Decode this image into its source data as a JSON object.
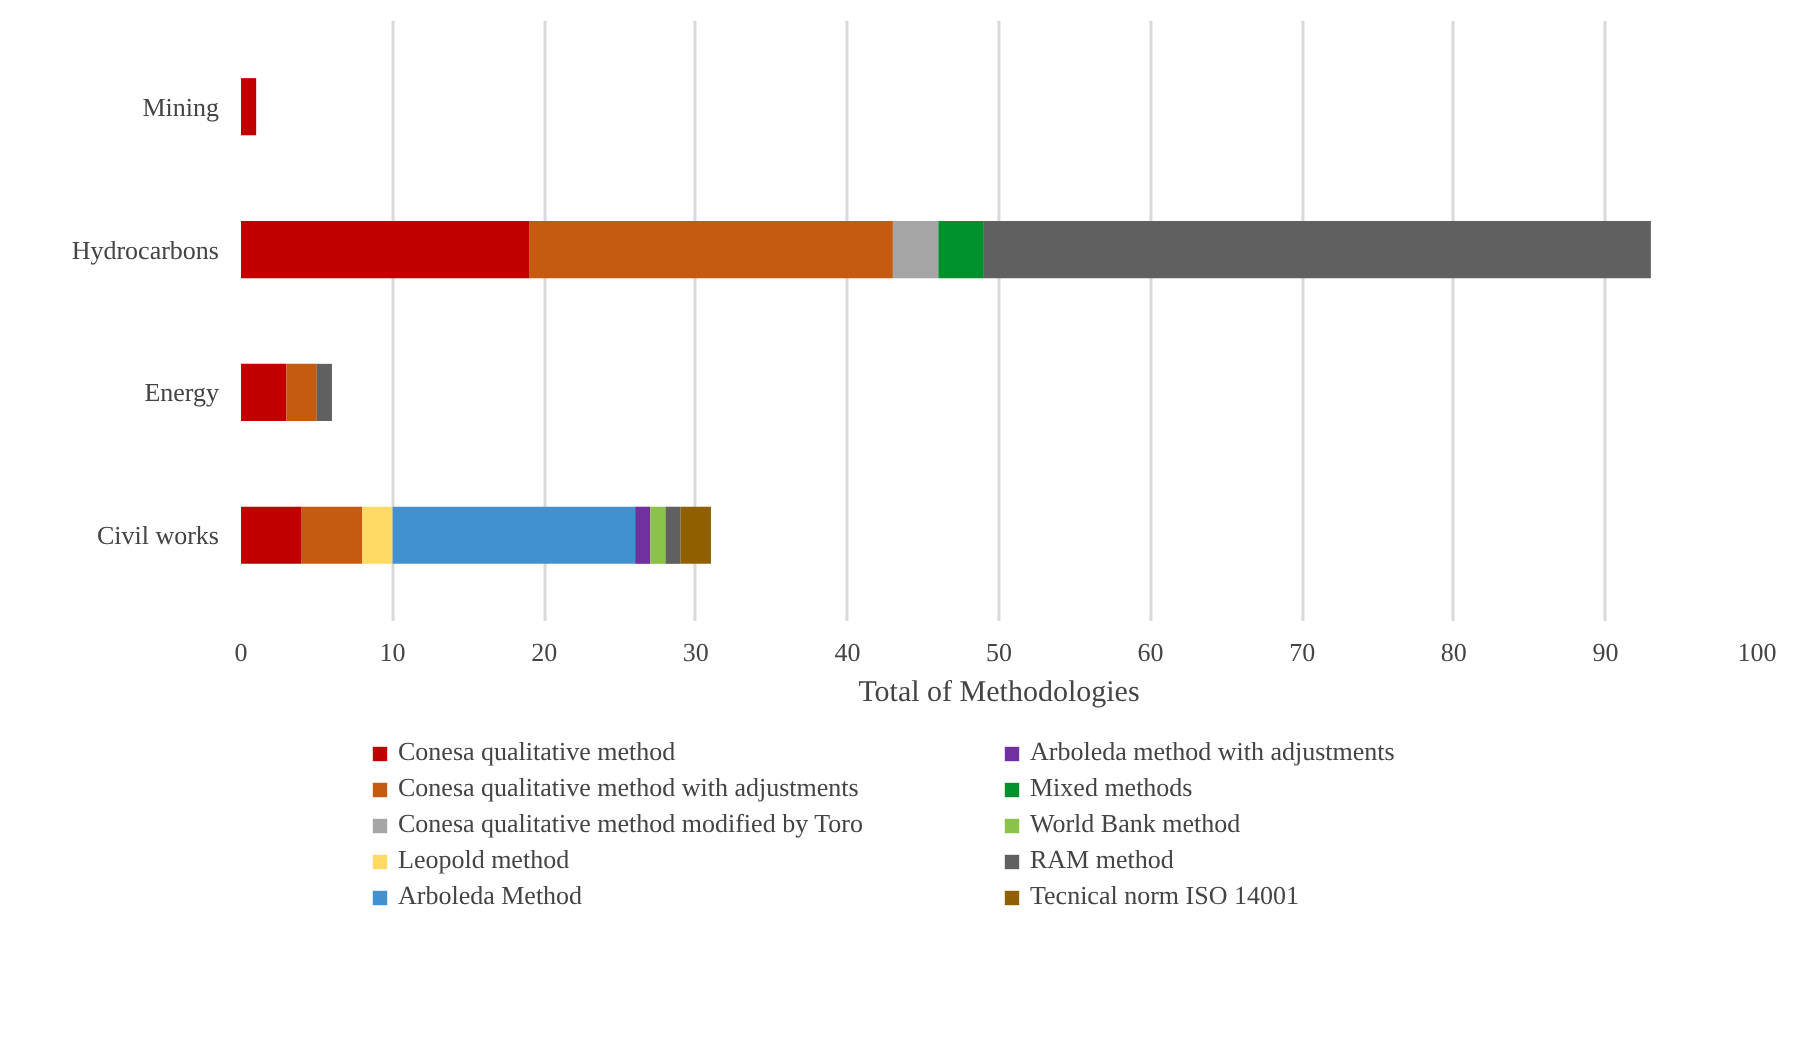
{
  "chart_data": {
    "type": "bar",
    "orientation": "horizontal",
    "stacked": true,
    "xlabel": "Total of Methodologies",
    "categories": [
      "Mining",
      "Hydrocarbons",
      "Energy",
      "Civil works"
    ],
    "series": [
      {
        "name": "Conesa qualitative method",
        "color": "#c00000",
        "values": [
          1,
          19,
          3,
          4
        ]
      },
      {
        "name": "Conesa qualitative method with adjustments",
        "color": "#c55a11",
        "values": [
          0,
          24,
          2,
          4
        ]
      },
      {
        "name": "Conesa qualitative method modified by Toro",
        "color": "#a5a5a5",
        "values": [
          0,
          3,
          0,
          0
        ]
      },
      {
        "name": "Leopold method",
        "color": "#ffd966",
        "values": [
          0,
          0,
          0,
          2
        ]
      },
      {
        "name": "Arboleda Method",
        "color": "#4190d0",
        "values": [
          0,
          0,
          0,
          16
        ]
      },
      {
        "name": "Arboleda method with adjustments",
        "color": "#7030a0",
        "values": [
          0,
          0,
          0,
          1
        ]
      },
      {
        "name": "Mixed methods",
        "color": "#00902c",
        "values": [
          0,
          3,
          0,
          0
        ]
      },
      {
        "name": "World Bank method",
        "color": "#8bc34a",
        "values": [
          0,
          0,
          0,
          1
        ]
      },
      {
        "name": "RAM method",
        "color": "#606060",
        "values": [
          0,
          44,
          1,
          1
        ]
      },
      {
        "name": "Tecnical norm ISO 14001",
        "color": "#8f5f00",
        "values": [
          0,
          0,
          0,
          2
        ]
      }
    ],
    "xlim": [
      0,
      100
    ],
    "xticks": [
      0,
      10,
      20,
      30,
      40,
      50,
      60,
      70,
      80,
      90,
      100
    ],
    "grid": "x",
    "legend": "bottom"
  }
}
